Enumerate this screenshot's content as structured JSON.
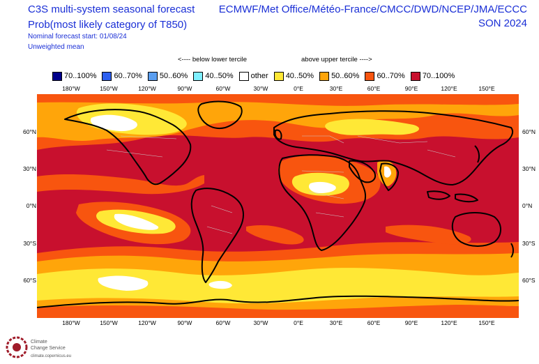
{
  "header": {
    "title_line1": "C3S multi-system seasonal forecast",
    "title_line2": "Prob(most likely category of T850)",
    "forecast_start": "Nominal forecast start: 01/08/24",
    "weighting": "Unweighted mean",
    "centers": "ECMWF/Met Office/Météo-France/CMCC/DWD/NCEP/JMA/ECCC",
    "season": "SON 2024"
  },
  "legend": {
    "below_label": "<---- below lower tercile",
    "above_label": "above upper tercile ---->",
    "items": [
      {
        "label": "70..100%",
        "color": "#00008b"
      },
      {
        "label": "60..70%",
        "color": "#2c5ff0"
      },
      {
        "label": "50..60%",
        "color": "#5a9ef0"
      },
      {
        "label": "40..50%",
        "color": "#7ff0ff"
      },
      {
        "label": "other",
        "color": "#ffffff"
      },
      {
        "label": "40..50%",
        "color": "#ffe836"
      },
      {
        "label": "50..60%",
        "color": "#ffa50a"
      },
      {
        "label": "60..70%",
        "color": "#f8550f"
      },
      {
        "label": "70..100%",
        "color": "#c8102e"
      }
    ]
  },
  "axes": {
    "lon_ticks": [
      "180°W",
      "150°W",
      "120°W",
      "90°W",
      "60°W",
      "30°W",
      "0°E",
      "30°E",
      "60°E",
      "90°E",
      "120°E",
      "150°E"
    ],
    "lat_ticks": [
      "60°N",
      "30°N",
      "0°N",
      "30°S",
      "60°S"
    ]
  },
  "branding": {
    "org_line1": "Climate",
    "org_line2": "Change Service",
    "url": "climate.copernicus.eu"
  }
}
